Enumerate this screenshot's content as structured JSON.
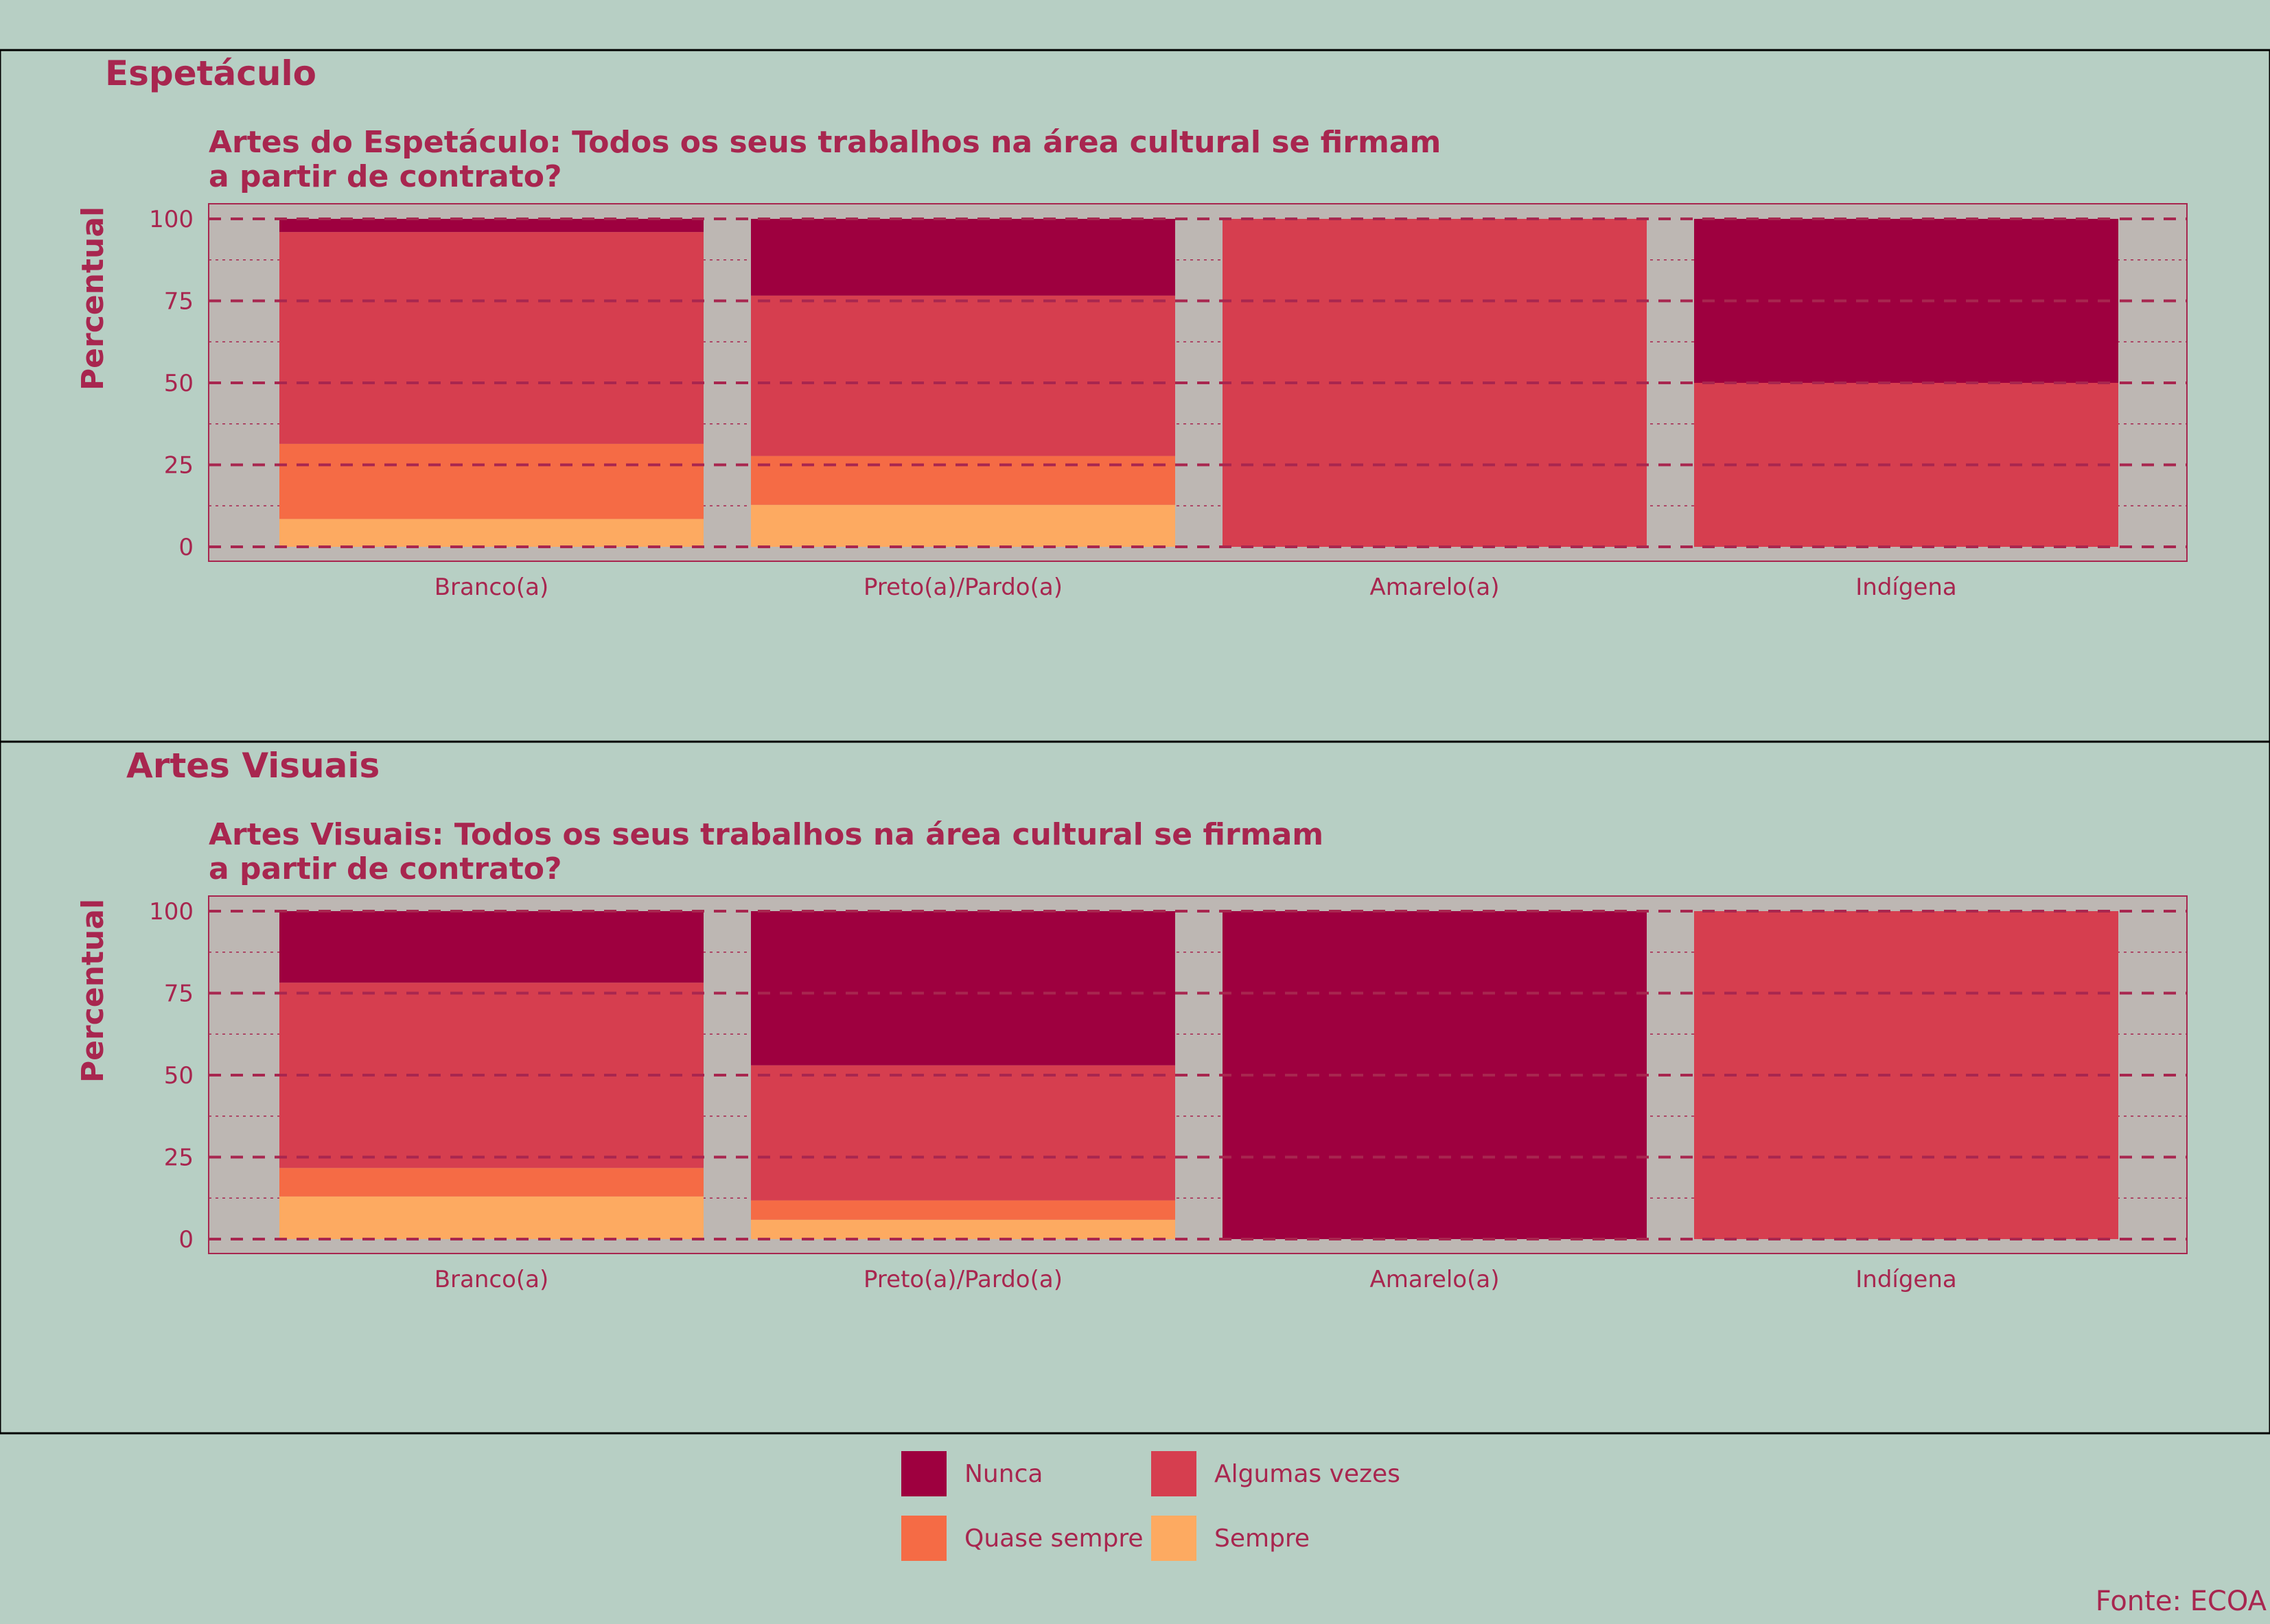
{
  "colors": {
    "Nunca": "#9e003f",
    "Algumas vezes": "#d63e4f",
    "Quase sempre": "#f56b45",
    "Sempre": "#fdaa61",
    "background": "#b7cfc4",
    "plot_bg": "#bdb7b3",
    "text": "#a8264f"
  },
  "legend": {
    "items": [
      {
        "key": "Nunca",
        "label": "Nunca"
      },
      {
        "key": "Algumas vezes",
        "label": "Algumas vezes"
      },
      {
        "key": "Quase sempre",
        "label": "Quase sempre"
      },
      {
        "key": "Sempre",
        "label": "Sempre"
      }
    ]
  },
  "caption": "Fonte: ECOA",
  "chart_data": [
    {
      "type": "bar",
      "stacked": true,
      "panel_title": "Espetáculo",
      "title_lines": [
        "Artes do Espetáculo: Todos os seus trabalhos na área cultural se firmam",
        "a partir de contrato?"
      ],
      "ylabel": "Percentual",
      "ylim": [
        0,
        100
      ],
      "yticks": [
        0,
        25,
        50,
        75,
        100
      ],
      "categories": [
        "Branco(a)",
        "Preto(a)/Pardo(a)",
        "Amarelo(a)",
        "Indígena"
      ],
      "series": [
        {
          "name": "Sempre",
          "values": [
            8.5,
            12.8,
            0,
            0
          ]
        },
        {
          "name": "Quase sempre",
          "values": [
            22.9,
            14.9,
            0,
            0
          ]
        },
        {
          "name": "Algumas vezes",
          "values": [
            64.6,
            48.9,
            100,
            50
          ]
        },
        {
          "name": "Nunca",
          "values": [
            4.0,
            23.4,
            0,
            50
          ]
        }
      ]
    },
    {
      "type": "bar",
      "stacked": true,
      "panel_title": "Artes Visuais",
      "title_lines": [
        "Artes Visuais: Todos os seus trabalhos na área cultural se firmam",
        "a partir de contrato?"
      ],
      "ylabel": "Percentual",
      "ylim": [
        0,
        100
      ],
      "yticks": [
        0,
        25,
        50,
        75,
        100
      ],
      "categories": [
        "Branco(a)",
        "Preto(a)/Pardo(a)",
        "Amarelo(a)",
        "Indígena"
      ],
      "series": [
        {
          "name": "Sempre",
          "values": [
            13.0,
            5.9,
            0,
            0
          ]
        },
        {
          "name": "Quase sempre",
          "values": [
            8.7,
            5.9,
            0,
            0
          ]
        },
        {
          "name": "Algumas vezes",
          "values": [
            56.5,
            41.2,
            0,
            100
          ]
        },
        {
          "name": "Nunca",
          "values": [
            21.8,
            47.0,
            100,
            0
          ]
        }
      ]
    }
  ]
}
